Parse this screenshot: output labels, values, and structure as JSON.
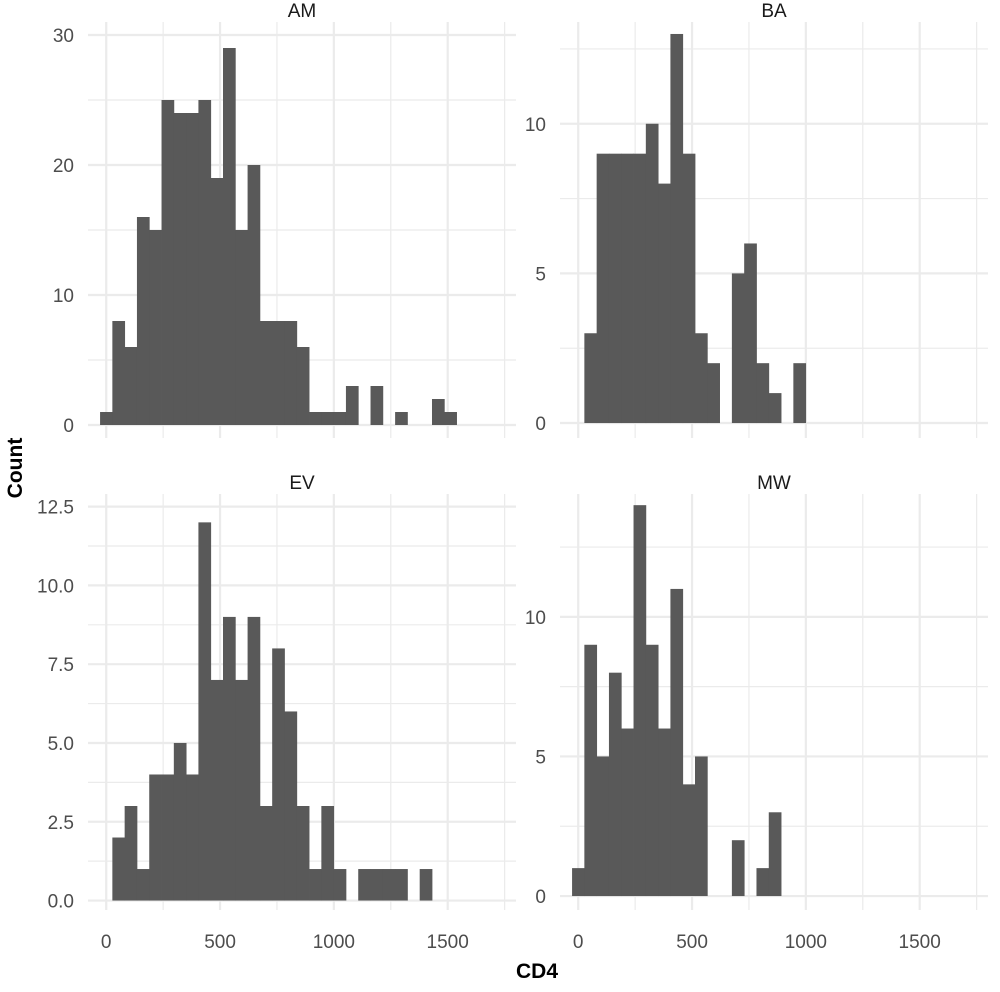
{
  "chart_data": {
    "type": "bar",
    "layout": "facet-grid-2x2",
    "xlabel": "CD4",
    "ylabel": "Count",
    "bar_color": "#595959",
    "grid_color": "#ebebeb",
    "background": "#ffffff",
    "grid": true,
    "xlim": [
      -80,
      1800
    ],
    "x_ticks": [
      0,
      500,
      1000,
      1500
    ],
    "x_tick_labels": [
      "0",
      "500",
      "1000",
      "1500"
    ],
    "bin_width": 54,
    "bin_start": -27,
    "facets": [
      {
        "title": "AM",
        "ylim": [
          -1,
          31
        ],
        "y_ticks": [
          0,
          10,
          20,
          30
        ],
        "y_tick_labels": [
          "0",
          "10",
          "20",
          "30"
        ],
        "values": [
          1,
          8,
          6,
          16,
          15,
          25,
          24,
          24,
          25,
          19,
          29,
          15,
          20,
          8,
          8,
          8,
          6,
          1,
          1,
          1,
          3,
          0,
          3,
          0,
          1,
          0,
          0,
          2,
          1
        ]
      },
      {
        "title": "BA",
        "ylim": [
          -0.5,
          13.4
        ],
        "y_ticks": [
          0,
          5,
          10
        ],
        "y_tick_labels": [
          "0",
          "5",
          "10"
        ],
        "values": [
          0,
          3,
          9,
          9,
          9,
          9,
          10,
          8,
          13,
          9,
          3,
          2,
          0,
          5,
          6,
          2,
          1,
          0,
          2
        ]
      },
      {
        "title": "EV",
        "ylim": [
          -0.3,
          12.9
        ],
        "y_ticks": [
          0,
          2.5,
          5,
          7.5,
          10,
          12.5
        ],
        "y_tick_labels": [
          "0.0",
          "2.5",
          "5.0",
          "7.5",
          "10.0",
          "12.5"
        ],
        "values": [
          0,
          2,
          3,
          1,
          4,
          4,
          5,
          4,
          12,
          7,
          9,
          7,
          9,
          3,
          8,
          6,
          3,
          1,
          3,
          1,
          0,
          1,
          1,
          1,
          1,
          0,
          1
        ]
      },
      {
        "title": "MW",
        "ylim": [
          -0.5,
          14.4
        ],
        "y_ticks": [
          0,
          5,
          10
        ],
        "y_tick_labels": [
          "0",
          "5",
          "10"
        ],
        "values": [
          1,
          9,
          5,
          8,
          6,
          14,
          9,
          6,
          11,
          4,
          5,
          0,
          0,
          2,
          0,
          1,
          3
        ]
      }
    ]
  }
}
